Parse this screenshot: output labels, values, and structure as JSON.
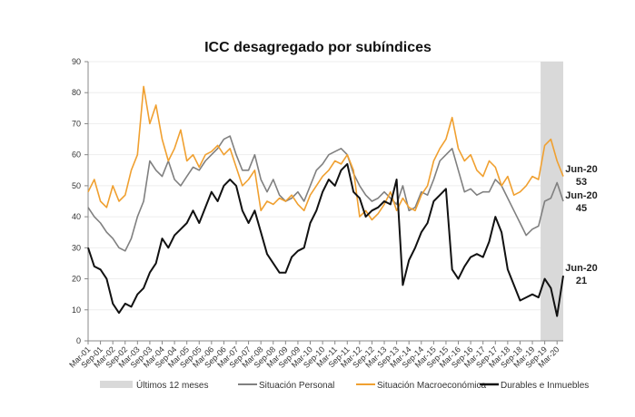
{
  "chart_data": {
    "type": "line",
    "title": "ICC desagregado por subíndices",
    "xlabel": "",
    "ylabel": "",
    "ylim": [
      0,
      90
    ],
    "yticks": [
      0,
      10,
      20,
      30,
      40,
      50,
      60,
      70,
      80,
      90
    ],
    "grid": true,
    "legend_position": "bottom",
    "frequency": "quarterly (Mar, Jun, Sep, Dec), Mar-01 to Jun-20",
    "x_tick_labels": [
      "Mar-01",
      "Sep-01",
      "Mar-02",
      "Sep-02",
      "Mar-03",
      "Sep-03",
      "Mar-04",
      "Sep-04",
      "Mar-05",
      "Sep-05",
      "Mar-06",
      "Sep-06",
      "Mar-07",
      "Sep-07",
      "Mar-08",
      "Sep-08",
      "Mar-09",
      "Sep-09",
      "Mar-10",
      "Sep-10",
      "Mar-11",
      "Sep-11",
      "Mar-12",
      "Sep-12",
      "Mar-13",
      "Sep-13",
      "Mar-14",
      "Sep-14",
      "Mar-15",
      "Sep-15",
      "Mar-16",
      "Sep-16",
      "Mar-17",
      "Sep-17",
      "Mar-18",
      "Sep-18",
      "Mar-19",
      "Sep-19",
      "Mar-20"
    ],
    "shaded_region": {
      "label": "Últimos 12 meses",
      "from": "Jul-19",
      "to": "Jun-20",
      "color": "#d9d9d9"
    },
    "series": [
      {
        "name": "Situación Personal",
        "color": "#808080",
        "values": [
          43,
          40,
          38,
          35,
          33,
          30,
          29,
          33,
          40,
          45,
          58,
          55,
          53,
          58,
          52,
          50,
          53,
          56,
          55,
          58,
          60,
          62,
          65,
          66,
          60,
          55,
          55,
          60,
          52,
          48,
          52,
          47,
          45,
          46,
          48,
          45,
          50,
          55,
          57,
          60,
          61,
          62,
          60,
          54,
          50,
          47,
          45,
          46,
          48,
          46,
          44,
          50,
          42,
          43,
          48,
          47,
          52,
          58,
          60,
          62,
          55,
          48,
          49,
          47,
          48,
          48,
          52,
          50,
          46,
          42,
          38,
          34,
          36,
          37,
          45,
          46,
          51,
          45
        ]
      },
      {
        "name": "Situación Macroeconómica",
        "color": "#f0a030",
        "values": [
          48,
          52,
          45,
          43,
          50,
          45,
          47,
          55,
          60,
          82,
          70,
          76,
          65,
          58,
          62,
          68,
          58,
          60,
          56,
          60,
          61,
          63,
          60,
          62,
          56,
          50,
          52,
          55,
          42,
          45,
          44,
          46,
          45,
          47,
          44,
          42,
          47,
          50,
          53,
          55,
          58,
          57,
          60,
          55,
          40,
          42,
          39,
          41,
          44,
          48,
          42,
          46,
          43,
          42,
          47,
          50,
          58,
          62,
          65,
          72,
          62,
          58,
          60,
          55,
          53,
          58,
          56,
          50,
          53,
          47,
          48,
          50,
          53,
          52,
          63,
          65,
          58,
          53
        ]
      },
      {
        "name": "Durables e Inmuebles",
        "color": "#111111",
        "values": [
          30,
          24,
          23,
          20,
          12,
          9,
          12,
          11,
          15,
          17,
          22,
          25,
          33,
          30,
          34,
          36,
          38,
          42,
          38,
          43,
          48,
          45,
          50,
          52,
          50,
          42,
          38,
          42,
          35,
          28,
          25,
          22,
          22,
          27,
          29,
          30,
          38,
          42,
          48,
          52,
          50,
          55,
          57,
          48,
          46,
          40,
          42,
          43,
          45,
          44,
          52,
          18,
          26,
          30,
          35,
          38,
          45,
          47,
          49,
          23,
          20,
          24,
          27,
          28,
          27,
          32,
          40,
          35,
          23,
          18,
          13,
          14,
          15,
          14,
          20,
          17,
          8,
          21
        ]
      }
    ],
    "annotations": [
      {
        "series": "Situación Macroeconómica",
        "label": "Jun-20",
        "value": "53"
      },
      {
        "series": "Situación Personal",
        "label": "Jun-20",
        "value": "45"
      },
      {
        "series": "Durables e Inmuebles",
        "label": "Jun-20",
        "value": "21"
      }
    ]
  }
}
